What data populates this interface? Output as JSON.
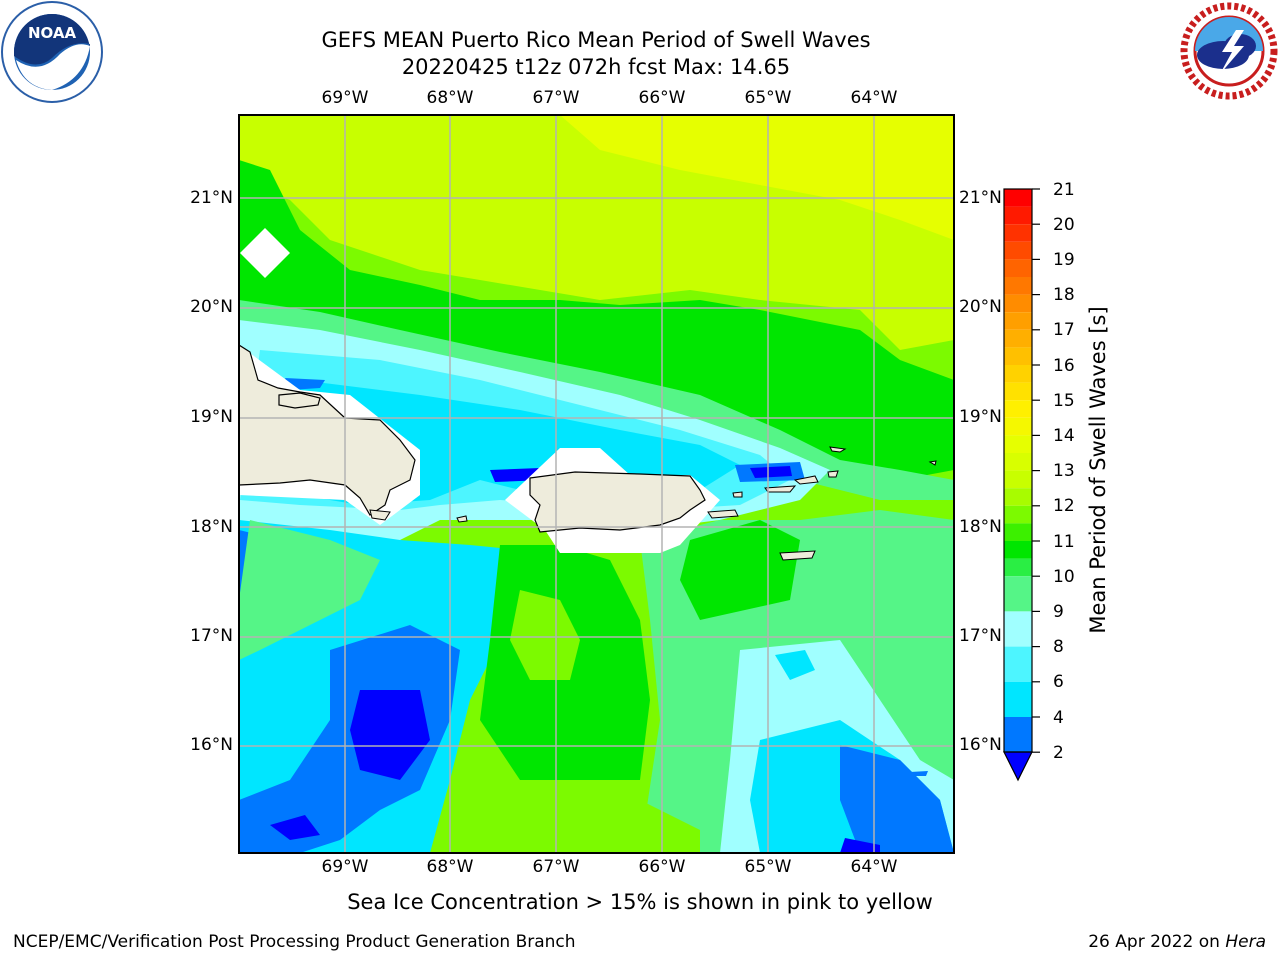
{
  "header": {
    "title_line1": "GEFS MEAN Puerto Rico Mean Period of Swell Waves",
    "title_line2": "20220425 t12z 072h fcst   Max: 14.65"
  },
  "logos": {
    "left": {
      "name": "NOAA",
      "text": "NOAA",
      "ring_text": "NATIONAL OCEANIC AND ATMOSPHERIC ADMINISTRATION · U.S. DEPARTMENT OF COMMERCE"
    },
    "right": {
      "name": "National Weather Service",
      "ring_text": "NATIONAL WEATHER SERVICE"
    }
  },
  "map": {
    "lon_labels": [
      "69°W",
      "68°W",
      "67°W",
      "66°W",
      "65°W",
      "64°W"
    ],
    "lat_labels": [
      "21°N",
      "20°N",
      "19°N",
      "18°N",
      "17°N",
      "16°N"
    ],
    "extent": {
      "lon_min": -70.0,
      "lon_max": -63.25,
      "lat_min": 15.0,
      "lat_max": 21.75
    },
    "land_color": "#eeecdc",
    "grid_color": "#b3b3b3"
  },
  "colorbar": {
    "label": "Mean Period of Swell Waves [s]",
    "ticks": [
      "21",
      "20",
      "19",
      "18",
      "17",
      "16",
      "15",
      "14",
      "13",
      "12",
      "11",
      "10",
      "9",
      "8",
      "6",
      "4",
      "2"
    ],
    "colors": [
      "#0000ff",
      "#0078ff",
      "#00e6ff",
      "#4df5ff",
      "#a0ffff",
      "#55f587",
      "#00e600",
      "#7cfa00",
      "#c8ff00",
      "#e6ff00",
      "#fff000",
      "#ffd200",
      "#ffaf00",
      "#ff8c00",
      "#ff6400",
      "#ff3200",
      "#ff0000"
    ]
  },
  "note": "Sea Ice Concentration > 15% is shown in pink to yellow",
  "footer": {
    "left": "NCEP/EMC/Verification Post Processing Product Generation Branch",
    "date": "26 Apr 2022 on ",
    "machine": "Hera"
  }
}
